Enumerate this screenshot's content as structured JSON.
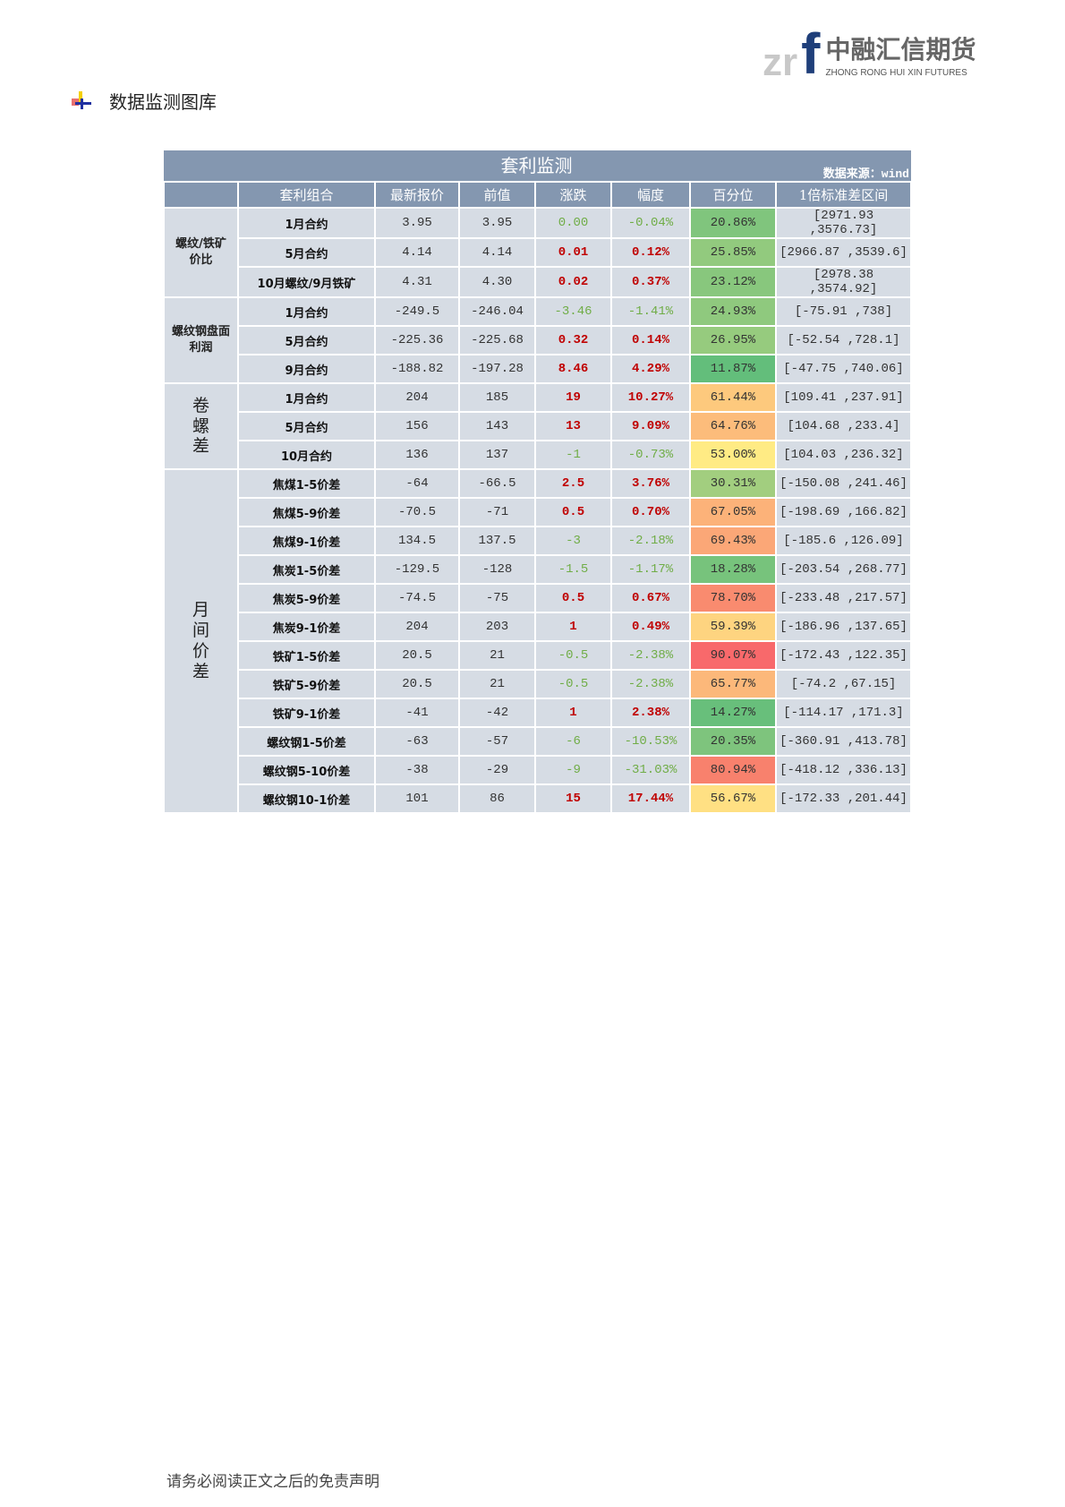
{
  "logo": {
    "mark_letters": "zrf",
    "name_cn": "中融汇信期货",
    "name_en": "ZHONG RONG HUI XIN FUTURES"
  },
  "section_title": "数据监测图库",
  "table": {
    "title": "套利监测",
    "source": "数据来源：wind",
    "headers": [
      "套利组合",
      "最新报价",
      "前值",
      "涨跌",
      "幅度",
      "百分位",
      "1倍标准差区间"
    ],
    "colors": {
      "up": "#c00000",
      "down": "#70ad47",
      "header_bg": "#8497b0",
      "cell_bg": "#d6dce4"
    },
    "groups": [
      {
        "label": "螺纹/铁矿价比",
        "rows": [
          {
            "name": "1月合约",
            "latest": "3.95",
            "prev": "3.95",
            "change": "0.00",
            "pct": "-0.04%",
            "dir": "zero",
            "percentile": "20.86%",
            "pcolor": "#80c57d",
            "range": "[2971.93 ,3576.73]"
          },
          {
            "name": "5月合约",
            "latest": "4.14",
            "prev": "4.14",
            "change": "0.01",
            "pct": "0.12%",
            "dir": "up",
            "percentile": "25.85%",
            "pcolor": "#92ca7e",
            "range": "[2966.87 ,3539.6]"
          },
          {
            "name": "10月螺纹/9月铁矿",
            "latest": "4.31",
            "prev": "4.30",
            "change": "0.02",
            "pct": "0.37%",
            "dir": "up",
            "percentile": "23.12%",
            "pcolor": "#88c77d",
            "range": "[2978.38 ,3574.92]"
          }
        ]
      },
      {
        "label": "螺纹钢盘面利润",
        "rows": [
          {
            "name": "1月合约",
            "latest": "-249.5",
            "prev": "-246.04",
            "change": "-3.46",
            "pct": "-1.41%",
            "dir": "down",
            "percentile": "24.93%",
            "pcolor": "#8fc97e",
            "range": "[-75.91 ,738]"
          },
          {
            "name": "5月合约",
            "latest": "-225.36",
            "prev": "-225.68",
            "change": "0.32",
            "pct": "0.14%",
            "dir": "up",
            "percentile": "26.95%",
            "pcolor": "#96cb7e",
            "range": "[-52.54 ,728.1]"
          },
          {
            "name": "9月合约",
            "latest": "-188.82",
            "prev": "-197.28",
            "change": "8.46",
            "pct": "4.29%",
            "dir": "up",
            "percentile": "11.87%",
            "pcolor": "#63be7b",
            "range": "[-47.75 ,740.06]"
          }
        ]
      },
      {
        "label": "卷螺差",
        "big": true,
        "rows": [
          {
            "name": "1月合约",
            "latest": "204",
            "prev": "185",
            "change": "19",
            "pct": "10.27%",
            "dir": "up",
            "percentile": "61.44%",
            "pcolor": "#fdc97d",
            "range": "[109.41 ,237.91]"
          },
          {
            "name": "5月合约",
            "latest": "156",
            "prev": "143",
            "change": "13",
            "pct": "9.09%",
            "dir": "up",
            "percentile": "64.76%",
            "pcolor": "#fcbc7b",
            "range": "[104.68 ,233.4]"
          },
          {
            "name": "10月合约",
            "latest": "136",
            "prev": "137",
            "change": "-1",
            "pct": "-0.73%",
            "dir": "down",
            "percentile": "53.00%",
            "pcolor": "#ffeb84",
            "range": "[104.03 ,236.32]"
          }
        ]
      },
      {
        "label": "月间价差",
        "big": true,
        "rows": [
          {
            "name": "焦煤1-5价差",
            "latest": "-64",
            "prev": "-66.5",
            "change": "2.5",
            "pct": "3.76%",
            "dir": "up",
            "percentile": "30.31%",
            "pcolor": "#a2ce7f",
            "range": "[-150.08 ,241.46]"
          },
          {
            "name": "焦煤5-9价差",
            "latest": "-70.5",
            "prev": "-71",
            "change": "0.5",
            "pct": "0.70%",
            "dir": "up",
            "percentile": "67.05%",
            "pcolor": "#fcb279",
            "range": "[-198.69 ,166.82]"
          },
          {
            "name": "焦煤9-1价差",
            "latest": "134.5",
            "prev": "137.5",
            "change": "-3",
            "pct": "-2.18%",
            "dir": "down",
            "percentile": "69.43%",
            "pcolor": "#fba777",
            "range": "[-185.6 ,126.09]"
          },
          {
            "name": "焦炭1-5价差",
            "latest": "-129.5",
            "prev": "-128",
            "change": "-1.5",
            "pct": "-1.17%",
            "dir": "down",
            "percentile": "18.28%",
            "pcolor": "#77c37c",
            "range": "[-203.54 ,268.77]"
          },
          {
            "name": "焦炭5-9价差",
            "latest": "-74.5",
            "prev": "-75",
            "change": "0.5",
            "pct": "0.67%",
            "dir": "up",
            "percentile": "78.70%",
            "pcolor": "#f98b6f",
            "range": "[-233.48 ,217.57]"
          },
          {
            "name": "焦炭9-1价差",
            "latest": "204",
            "prev": "203",
            "change": "1",
            "pct": "0.49%",
            "dir": "up",
            "percentile": "59.39%",
            "pcolor": "#fed480",
            "range": "[-186.96 ,137.65]"
          },
          {
            "name": "铁矿1-5价差",
            "latest": "20.5",
            "prev": "21",
            "change": "-0.5",
            "pct": "-2.38%",
            "dir": "down",
            "percentile": "90.07%",
            "pcolor": "#f8696b",
            "range": "[-172.43 ,122.35]"
          },
          {
            "name": "铁矿5-9价差",
            "latest": "20.5",
            "prev": "21",
            "change": "-0.5",
            "pct": "-2.38%",
            "dir": "down",
            "percentile": "65.77%",
            "pcolor": "#fcb87a",
            "range": "[-74.2 ,67.15]"
          },
          {
            "name": "铁矿9-1价差",
            "latest": "-41",
            "prev": "-42",
            "change": "1",
            "pct": "2.38%",
            "dir": "up",
            "percentile": "14.27%",
            "pcolor": "#68bf7b",
            "range": "[-114.17 ,171.3]"
          },
          {
            "name": "螺纹钢1-5价差",
            "latest": "-63",
            "prev": "-57",
            "change": "-6",
            "pct": "-10.53%",
            "dir": "down",
            "percentile": "20.35%",
            "pcolor": "#7ec47d",
            "range": "[-360.91 ,413.78]"
          },
          {
            "name": "螺纹钢5-10价差",
            "latest": "-38",
            "prev": "-29",
            "change": "-9",
            "pct": "-31.03%",
            "dir": "down",
            "percentile": "80.94%",
            "pcolor": "#f8816d",
            "range": "[-418.12 ,336.13]"
          },
          {
            "name": "螺纹钢10-1价差",
            "latest": "101",
            "prev": "86",
            "change": "15",
            "pct": "17.44%",
            "dir": "up",
            "percentile": "56.67%",
            "pcolor": "#ffe083",
            "range": "[-172.33 ,201.44]"
          }
        ]
      }
    ]
  },
  "footer": "请务必阅读正文之后的免责声明"
}
